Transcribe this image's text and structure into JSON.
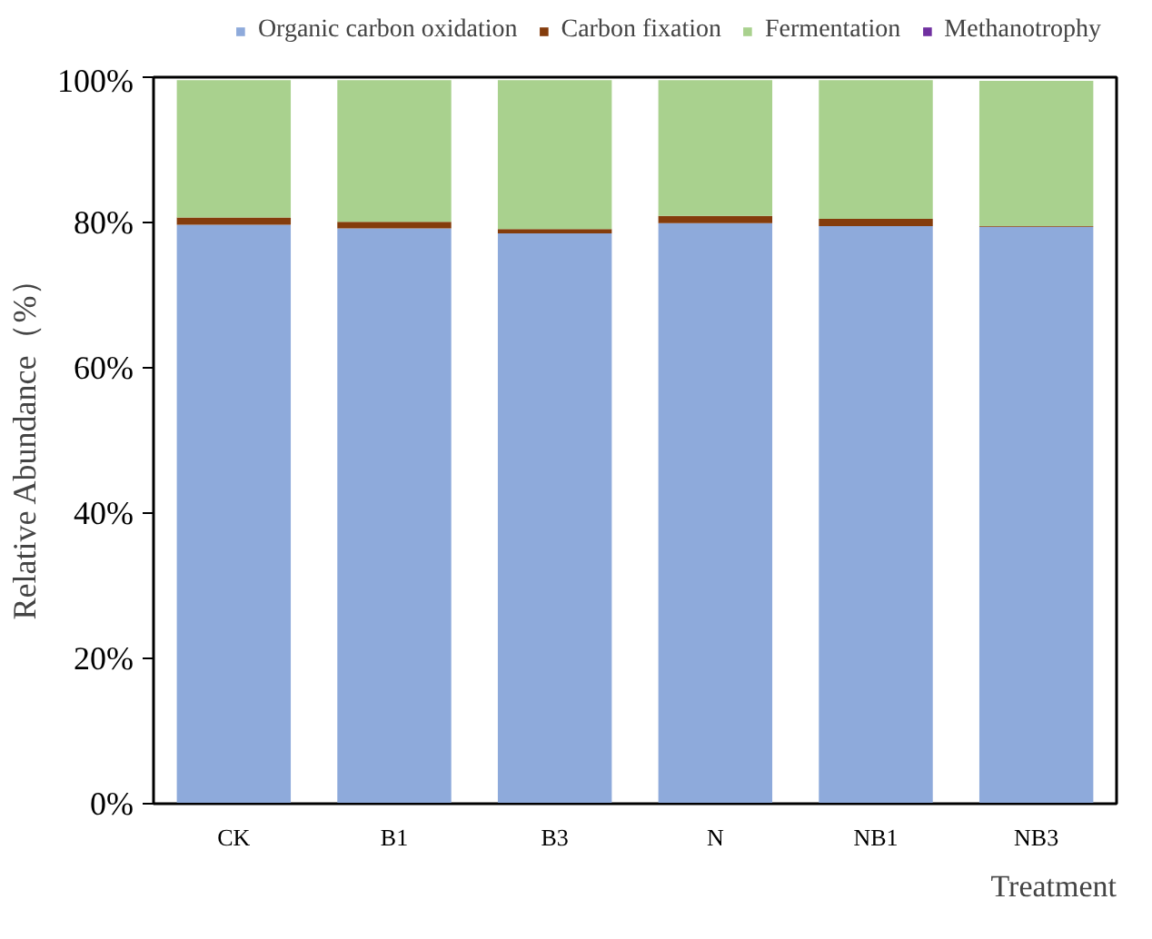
{
  "chart_data": {
    "type": "bar",
    "stacked": true,
    "xlabel": "Treatment",
    "ylabel": "Relative Abundance（%）",
    "categories": [
      "CK",
      "B1",
      "B3",
      "N",
      "NB1",
      "NB3"
    ],
    "series": [
      {
        "name": "Organic carbon oxidation",
        "color": "#8eaadb",
        "values": [
          79.7,
          79.2,
          78.5,
          79.9,
          79.5,
          79.4
        ]
      },
      {
        "name": "Carbon fixation",
        "color": "#843c0c",
        "values": [
          1.0,
          0.9,
          0.6,
          1.0,
          1.0,
          0.1
        ]
      },
      {
        "name": "Fermentation",
        "color": "#a9d18e",
        "values": [
          18.9,
          19.5,
          20.5,
          18.7,
          19.1,
          20.0
        ]
      },
      {
        "name": "Methanotrophy",
        "color": "#7030a0",
        "values": [
          0,
          0,
          0,
          0,
          0,
          0
        ]
      }
    ],
    "ylim": [
      0,
      100
    ],
    "yticks": [
      {
        "value": 0,
        "label": "0%"
      },
      {
        "value": 20,
        "label": "20%"
      },
      {
        "value": 40,
        "label": "40%"
      },
      {
        "value": 60,
        "label": "60%"
      },
      {
        "value": 80,
        "label": "80%"
      },
      {
        "value": 100,
        "label": "100%"
      }
    ],
    "grid": false,
    "legend": "top"
  }
}
